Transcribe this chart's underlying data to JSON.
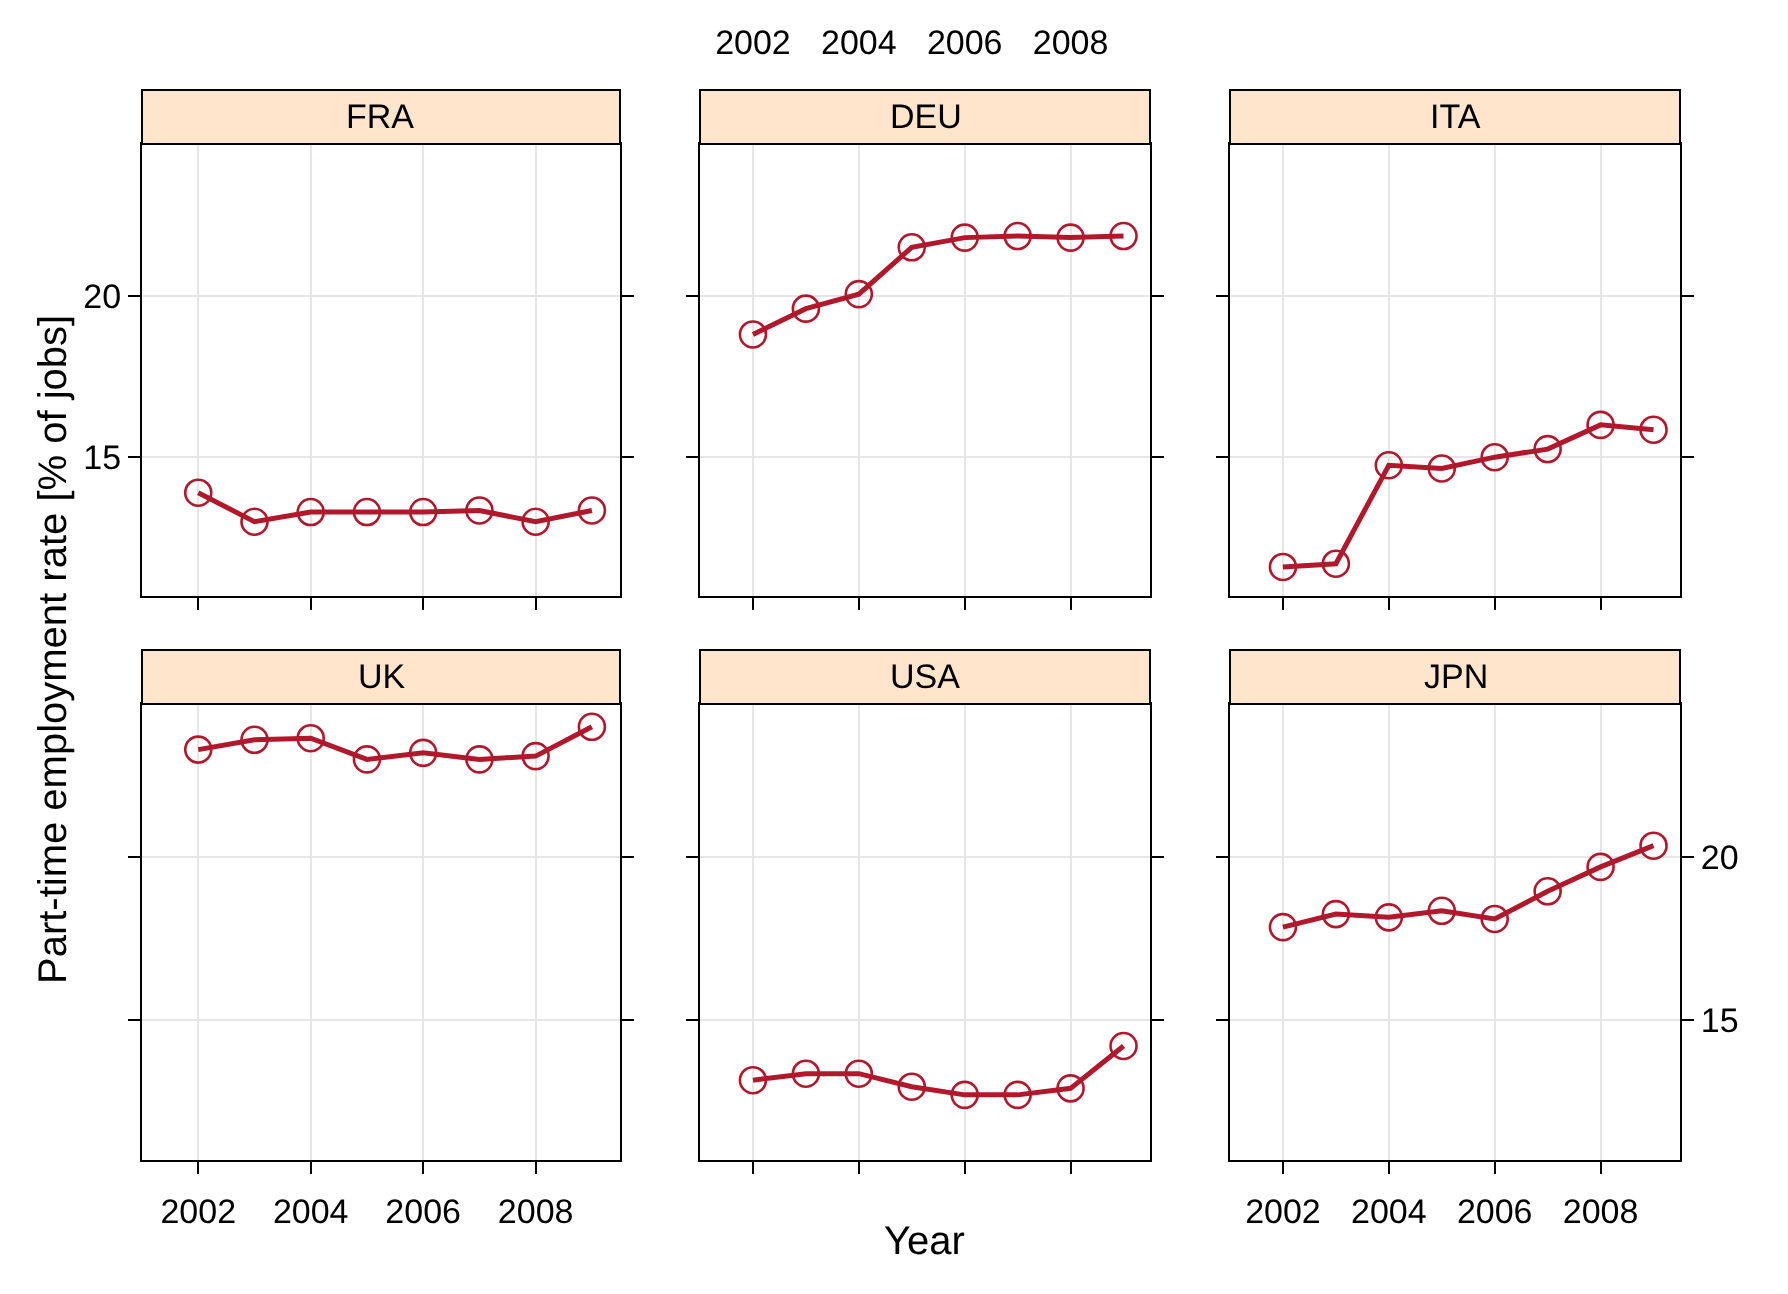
{
  "chart_data": [
    {
      "type": "line",
      "title": "FRA",
      "ylabel": "Part-time employment rate [% of jobs]",
      "x": [
        2002,
        2003,
        2004,
        2005,
        2006,
        2007,
        2008,
        2009
      ],
      "xlim": [
        2001,
        2009.5
      ],
      "xticks": [
        2002,
        2004,
        2006,
        2008
      ],
      "ylim": [
        10.7,
        24.7
      ],
      "yticks": [
        15,
        20
      ],
      "tick_labels": "y",
      "grid": true,
      "marker": "circle",
      "line_style": "solid",
      "series": [
        {
          "color": "#b2182b",
          "values": [
            13.9,
            13.0,
            13.3,
            13.3,
            13.3,
            13.35,
            13.0,
            13.35
          ]
        }
      ]
    },
    {
      "type": "line",
      "title": "DEU",
      "x": [
        2002,
        2003,
        2004,
        2005,
        2006,
        2007,
        2008,
        2009
      ],
      "xlim": [
        2001,
        2009.5
      ],
      "xticks": [
        2002,
        2004,
        2006,
        2008
      ],
      "ylim": [
        10.7,
        24.7
      ],
      "yticks": [
        15,
        20
      ],
      "tick_labels": "x",
      "grid": true,
      "marker": "circle",
      "line_style": "solid",
      "series": [
        {
          "color": "#b2182b",
          "values": [
            18.8,
            19.6,
            20.05,
            21.5,
            21.8,
            21.85,
            21.8,
            21.85
          ]
        }
      ]
    },
    {
      "type": "line",
      "title": "ITA",
      "x": [
        2002,
        2003,
        2004,
        2005,
        2006,
        2007,
        2008,
        2009
      ],
      "xlim": [
        2001,
        2009.5
      ],
      "xticks": [
        2002,
        2004,
        2006,
        2008
      ],
      "ylim": [
        10.7,
        24.7
      ],
      "yticks": [
        15,
        20
      ],
      "tick_labels": false,
      "grid": true,
      "marker": "circle",
      "line_style": "solid",
      "series": [
        {
          "color": "#b2182b",
          "values": [
            11.6,
            11.7,
            14.75,
            14.65,
            15.0,
            15.25,
            16.0,
            15.85
          ]
        }
      ]
    },
    {
      "type": "line",
      "title": "UK",
      "x": [
        2002,
        2003,
        2004,
        2005,
        2006,
        2007,
        2008,
        2009
      ],
      "xlim": [
        2001,
        2009.5
      ],
      "xticks": [
        2002,
        2004,
        2006,
        2008
      ],
      "ylim": [
        10.7,
        24.7
      ],
      "yticks": [
        15,
        20
      ],
      "tick_labels": "x",
      "grid": true,
      "marker": "circle",
      "line_style": "solid",
      "series": [
        {
          "color": "#b2182b",
          "values": [
            23.3,
            23.6,
            23.65,
            23.0,
            23.2,
            23.0,
            23.1,
            24.0
          ]
        }
      ]
    },
    {
      "type": "line",
      "title": "USA",
      "xlabel": "Year",
      "x": [
        2002,
        2003,
        2004,
        2005,
        2006,
        2007,
        2008,
        2009
      ],
      "xlim": [
        2001,
        2009.5
      ],
      "xticks": [
        2002,
        2004,
        2006,
        2008
      ],
      "ylim": [
        10.7,
        24.7
      ],
      "yticks": [
        15,
        20
      ],
      "tick_labels": false,
      "grid": true,
      "marker": "circle",
      "line_style": "solid",
      "series": [
        {
          "color": "#b2182b",
          "values": [
            13.15,
            13.35,
            13.35,
            12.95,
            12.7,
            12.7,
            12.9,
            14.2
          ]
        }
      ]
    },
    {
      "type": "line",
      "title": "JPN",
      "x": [
        2002,
        2003,
        2004,
        2005,
        2006,
        2007,
        2008,
        2009
      ],
      "xlim": [
        2001,
        2009.5
      ],
      "xticks": [
        2002,
        2004,
        2006,
        2008
      ],
      "ylim": [
        10.7,
        24.7
      ],
      "yticks": [
        15,
        20
      ],
      "grid": true,
      "marker": "circle",
      "line_style": "solid",
      "series": [
        {
          "color": "#b2182b",
          "values": [
            17.85,
            18.25,
            18.15,
            18.35,
            18.1,
            18.95,
            19.7,
            20.35
          ]
        }
      ]
    }
  ]
}
